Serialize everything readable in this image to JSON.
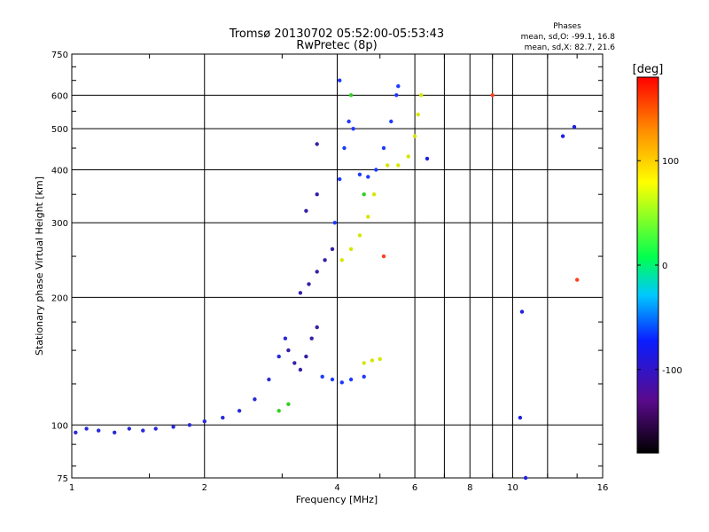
{
  "header": {
    "title": "Tromsø 20130702 05:52:00-05:53:43",
    "subtitle": "RwPretec (8p)",
    "phases_title": "Phases",
    "phases_o": "mean, sd,O: -99.1, 16.8",
    "phases_x": "mean, sd,X:  82.7, 21.6"
  },
  "chart_data": {
    "type": "scatter",
    "xlabel": "Frequency [MHz]",
    "ylabel": "Stationary phase Virtual Height [km]",
    "x_scale": "log",
    "y_scale": "log",
    "xlim": [
      1,
      16
    ],
    "ylim": [
      75,
      750
    ],
    "x_ticks": [
      1,
      2,
      4,
      6,
      8,
      10,
      16
    ],
    "x_tick_labels": [
      "1",
      "2",
      "4",
      "6",
      "8",
      "10",
      "16"
    ],
    "x_minor_gridlines": [
      7,
      9,
      12
    ],
    "y_ticks": [
      75,
      100,
      200,
      300,
      400,
      500,
      600,
      750
    ],
    "y_tick_labels": [
      "75",
      "100",
      "200",
      "300",
      "400",
      "500",
      "600",
      "750"
    ],
    "grid": true,
    "colorbar": {
      "label": "[deg]",
      "range": [
        -180,
        180
      ],
      "ticks": [
        100,
        0,
        -100
      ],
      "tick_labels": [
        "100",
        "0",
        "-100"
      ],
      "colors": [
        "#000000",
        "#5a0a8c",
        "#0a1eff",
        "#00c8ff",
        "#00ff50",
        "#ffff00",
        "#ff8c00",
        "#ff0000"
      ]
    },
    "series": [
      {
        "color": "#2a2ad8",
        "points": [
          [
            1.02,
            96
          ],
          [
            1.08,
            98
          ],
          [
            1.15,
            97
          ],
          [
            1.25,
            96
          ],
          [
            1.35,
            98
          ],
          [
            1.45,
            97
          ],
          [
            1.55,
            98
          ],
          [
            1.7,
            99
          ],
          [
            1.85,
            100
          ],
          [
            2.0,
            102
          ],
          [
            2.2,
            104
          ],
          [
            2.4,
            108
          ],
          [
            2.6,
            115
          ],
          [
            2.8,
            128
          ],
          [
            2.95,
            145
          ],
          [
            3.05,
            160
          ]
        ]
      },
      {
        "color": "#3a1ea8",
        "points": [
          [
            3.1,
            150
          ],
          [
            3.2,
            140
          ],
          [
            3.3,
            135
          ],
          [
            3.4,
            145
          ],
          [
            3.5,
            160
          ],
          [
            3.6,
            170
          ],
          [
            3.3,
            205
          ],
          [
            3.45,
            215
          ],
          [
            3.6,
            230
          ],
          [
            3.75,
            245
          ],
          [
            3.9,
            260
          ],
          [
            3.4,
            320
          ],
          [
            3.6,
            350
          ],
          [
            3.6,
            460
          ]
        ]
      },
      {
        "color": "#1e3aff",
        "points": [
          [
            3.7,
            130
          ],
          [
            3.9,
            128
          ],
          [
            4.1,
            126
          ],
          [
            4.3,
            128
          ],
          [
            4.6,
            130
          ],
          [
            3.95,
            300
          ],
          [
            4.05,
            380
          ],
          [
            4.15,
            450
          ],
          [
            4.25,
            520
          ],
          [
            4.35,
            500
          ],
          [
            4.5,
            390
          ],
          [
            4.7,
            385
          ],
          [
            4.9,
            400
          ],
          [
            5.1,
            450
          ],
          [
            5.3,
            520
          ],
          [
            5.45,
            600
          ],
          [
            5.5,
            630
          ],
          [
            4.05,
            650
          ]
        ]
      },
      {
        "color": "#d6e600",
        "points": [
          [
            4.1,
            245
          ],
          [
            4.3,
            260
          ],
          [
            4.5,
            280
          ],
          [
            4.7,
            310
          ],
          [
            4.85,
            350
          ],
          [
            4.6,
            140
          ],
          [
            4.8,
            142
          ],
          [
            5.0,
            143
          ],
          [
            5.2,
            410
          ],
          [
            5.5,
            410
          ],
          [
            5.8,
            430
          ],
          [
            6.0,
            480
          ],
          [
            6.1,
            540
          ],
          [
            6.2,
            600
          ]
        ]
      },
      {
        "color": "#30d020",
        "points": [
          [
            2.95,
            108
          ],
          [
            3.1,
            112
          ],
          [
            4.3,
            600
          ],
          [
            4.6,
            350
          ]
        ]
      },
      {
        "color": "#ff4020",
        "points": [
          [
            9.0,
            600
          ],
          [
            14.0,
            220
          ],
          [
            5.1,
            250
          ]
        ]
      },
      {
        "color": "#2020e0",
        "points": [
          [
            13.0,
            480
          ],
          [
            13.8,
            505
          ],
          [
            10.5,
            185
          ],
          [
            10.4,
            104
          ],
          [
            10.7,
            75
          ],
          [
            6.4,
            425
          ]
        ]
      }
    ]
  }
}
